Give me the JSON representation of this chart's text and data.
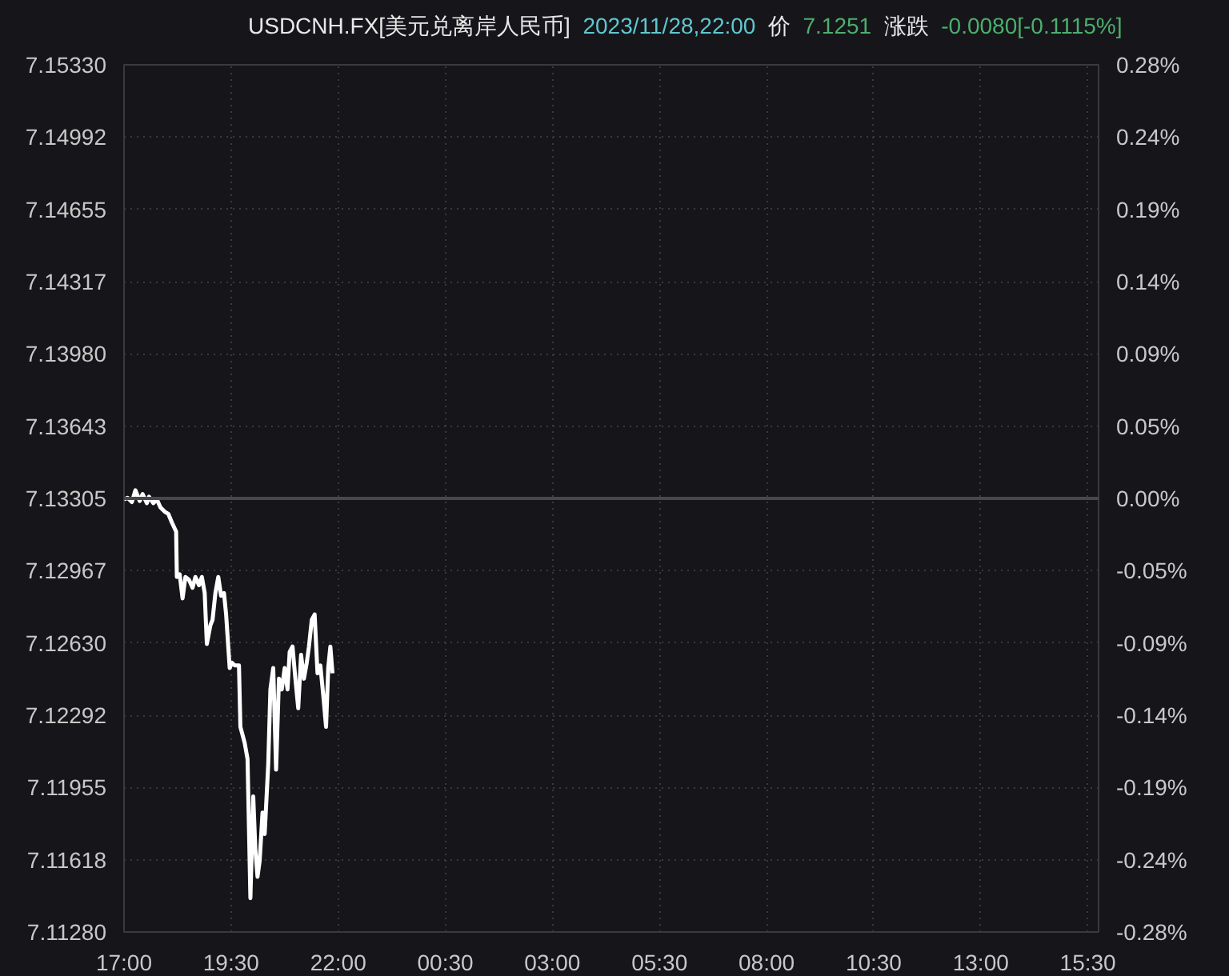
{
  "chart_data": {
    "type": "line",
    "title": "USDCNH.FX[美元兑离岸人民币]",
    "subtitle": "2023/11/28,22:00",
    "annotations": [
      "价",
      "7.1251",
      "涨跌",
      "-0.0080[-0.1115%]"
    ],
    "x": [
      "2023-11-28T17:00",
      "2023-11-28T17:05",
      "2023-11-28T17:11",
      "2023-11-28T17:16",
      "2023-11-28T17:22",
      "2023-11-28T17:26",
      "2023-11-28T17:32",
      "2023-11-28T17:35",
      "2023-11-28T17:41",
      "2023-11-28T17:46",
      "2023-11-28T17:51",
      "2023-11-28T17:57",
      "2023-11-28T18:02",
      "2023-11-28T18:07",
      "2023-11-28T18:13",
      "2023-11-28T18:14",
      "2023-11-28T18:18",
      "2023-11-28T18:22",
      "2023-11-28T18:26",
      "2023-11-28T18:31",
      "2023-11-28T18:36",
      "2023-11-28T18:40",
      "2023-11-28T18:45",
      "2023-11-28T18:49",
      "2023-11-28T18:53",
      "2023-11-28T18:56",
      "2023-11-28T19:01",
      "2023-11-28T19:04",
      "2023-11-28T19:08",
      "2023-11-28T19:12",
      "2023-11-28T19:16",
      "2023-11-28T19:20",
      "2023-11-28T19:23",
      "2023-11-28T19:28",
      "2023-11-28T19:31",
      "2023-11-28T19:35",
      "2023-11-28T19:41",
      "2023-11-28T19:43",
      "2023-11-28T19:49",
      "2023-11-28T19:53",
      "2023-11-28T19:57",
      "2023-11-28T20:01",
      "2023-11-28T20:04",
      "2023-11-28T20:07",
      "2023-11-28T20:10",
      "2023-11-28T20:14",
      "2023-11-28T20:17",
      "2023-11-28T20:22",
      "2023-11-28T20:25",
      "2023-11-28T20:29",
      "2023-11-28T20:33",
      "2023-11-28T20:37",
      "2023-11-28T20:41",
      "2023-11-28T20:45",
      "2023-11-28T20:49",
      "2023-11-28T20:52",
      "2023-11-28T20:56",
      "2023-11-28T21:00",
      "2023-11-28T21:04",
      "2023-11-28T21:08",
      "2023-11-28T21:12",
      "2023-11-28T21:16",
      "2023-11-28T21:19",
      "2023-11-28T21:23",
      "2023-11-28T21:27",
      "2023-11-28T21:31",
      "2023-11-28T21:35",
      "2023-11-28T21:39",
      "2023-11-28T21:43",
      "2023-11-28T21:46",
      "2023-11-28T21:49",
      "2023-11-28T21:52"
    ],
    "series": [
      {
        "color": "#ffffff",
        "values": [
          7.133,
          7.13308,
          7.13288,
          7.13343,
          7.13293,
          7.13325,
          7.13283,
          7.13313,
          7.13283,
          7.133,
          7.13263,
          7.13243,
          7.13233,
          7.13193,
          7.1315,
          7.12938,
          7.1295,
          7.12838,
          7.12938,
          7.12925,
          7.12888,
          7.12938,
          7.129,
          7.12938,
          7.12863,
          7.12625,
          7.12713,
          7.12738,
          7.12863,
          7.12938,
          7.1285,
          7.12863,
          7.12763,
          7.12513,
          7.12538,
          7.12525,
          7.12525,
          7.12238,
          7.12163,
          7.12088,
          7.11438,
          7.11913,
          7.11663,
          7.11538,
          7.11613,
          7.11838,
          7.11738,
          7.12063,
          7.12413,
          7.12513,
          7.12038,
          7.12463,
          7.12413,
          7.12513,
          7.12413,
          7.12588,
          7.12613,
          7.12463,
          7.12325,
          7.12575,
          7.12463,
          7.12538,
          7.12613,
          7.12738,
          7.12763,
          7.12488,
          7.12525,
          7.12388,
          7.12238,
          7.12513,
          7.12613,
          7.12488
        ]
      }
    ],
    "xlim": [
      "2023-11-28T17:00",
      "2023-11-29T15:45"
    ],
    "xticks": [
      {
        "value": "2023-11-28T17:00",
        "label": "17:00"
      },
      {
        "value": "2023-11-28T19:30",
        "label": "19:30"
      },
      {
        "value": "2023-11-28T22:00",
        "label": "22:00"
      },
      {
        "value": "2023-11-29T00:30",
        "label": "00:30"
      },
      {
        "value": "2023-11-29T03:00",
        "label": "03:00"
      },
      {
        "value": "2023-11-29T05:30",
        "label": "05:30"
      },
      {
        "value": "2023-11-29T08:00",
        "label": "08:00"
      },
      {
        "value": "2023-11-29T10:30",
        "label": "10:30"
      },
      {
        "value": "2023-11-29T13:00",
        "label": "13:00"
      },
      {
        "value": "2023-11-29T15:30",
        "label": "15:30"
      }
    ],
    "ylim": [
      7.1128,
      7.1533
    ],
    "yticks": [
      {
        "value": 7.1533,
        "label": "7.15330"
      },
      {
        "value": 7.14992,
        "label": "7.14992"
      },
      {
        "value": 7.14655,
        "label": "7.14655"
      },
      {
        "value": 7.14317,
        "label": "7.14317"
      },
      {
        "value": 7.1398,
        "label": "7.13980"
      },
      {
        "value": 7.13643,
        "label": "7.13643"
      },
      {
        "value": 7.13305,
        "label": "7.13305"
      },
      {
        "value": 7.12967,
        "label": "7.12967"
      },
      {
        "value": 7.1263,
        "label": "7.12630"
      },
      {
        "value": 7.12292,
        "label": "7.12292"
      },
      {
        "value": 7.11955,
        "label": "7.11955"
      },
      {
        "value": 7.11618,
        "label": "7.11618"
      },
      {
        "value": 7.1128,
        "label": "7.11280"
      }
    ],
    "y2lim": [
      -0.2839,
      0.2839
    ],
    "y2ticks": [
      {
        "value": 0.2839,
        "label": "0.28%"
      },
      {
        "value": 0.2366,
        "label": "0.24%"
      },
      {
        "value": 0.1893,
        "label": "0.19%"
      },
      {
        "value": 0.142,
        "label": "0.14%"
      },
      {
        "value": 0.0946,
        "label": "0.09%"
      },
      {
        "value": 0.0473,
        "label": "0.05%"
      },
      {
        "value": 0,
        "label": "0.00%"
      },
      {
        "value": -0.0473,
        "label": "-0.05%"
      },
      {
        "value": -0.0946,
        "label": "-0.09%"
      },
      {
        "value": -0.142,
        "label": "-0.14%"
      },
      {
        "value": -0.1893,
        "label": "-0.19%"
      },
      {
        "value": -0.2366,
        "label": "-0.24%"
      },
      {
        "value": -0.2839,
        "label": "-0.28%"
      }
    ],
    "ref_lines": [
      {
        "axis": "y",
        "value": 7.13305,
        "color": "#48484c"
      }
    ],
    "grid": true,
    "line_style": "solid",
    "marker": "none"
  }
}
